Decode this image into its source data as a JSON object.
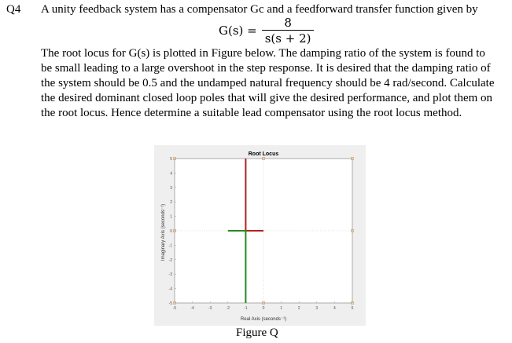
{
  "question": {
    "number": "Q4",
    "intro": "A unity feedback system has a compensator Gc and a feedforward transfer function given by",
    "equation": {
      "lhs": "G(s) =",
      "numerator": "8",
      "denominator": "s(s + 2)"
    },
    "body_lines": [
      "The root locus for G(s) is plotted in Figure below. The damping ratio of the system is found to",
      "be small leading to a large overshoot in the step response. It is desired that the damping ratio of",
      "the system should be 0.5 and the undamped natural frequency should be 4 rad/second. Calculate",
      "the desired dominant closed loop poles that will give the desired performance, and plot them on",
      "the root locus. Hence determine a suitable lead compensator using the root locus method."
    ]
  },
  "figure_caption": "Figure Q",
  "chart_data": {
    "type": "line",
    "title": "Root Locus",
    "xlabel": "Real Axis (seconds⁻¹)",
    "ylabel": "Imaginary Axis (seconds⁻¹)",
    "xlim": [
      -5,
      5
    ],
    "ylim": [
      -5,
      5
    ],
    "xticks": [
      "-5",
      "-4",
      "-3",
      "-2",
      "-1",
      "0",
      "1",
      "2",
      "3",
      "4",
      "5"
    ],
    "yticks": [
      "-5",
      "-4",
      "-3",
      "-2",
      "-1",
      "0",
      "1",
      "2",
      "3",
      "4",
      "5"
    ],
    "grid": false,
    "series": [
      {
        "color": "#b22222",
        "points": [
          [
            0,
            0
          ],
          [
            -1,
            0
          ],
          [
            -1,
            5
          ]
        ]
      },
      {
        "color": "#228b22",
        "points": [
          [
            -2,
            0
          ],
          [
            -1,
            0
          ],
          [
            -1,
            -5
          ]
        ]
      }
    ],
    "markers": [
      [
        -5,
        5
      ],
      [
        0,
        5
      ],
      [
        5,
        5
      ],
      [
        -5,
        0
      ],
      [
        5,
        0
      ],
      [
        -5,
        -5
      ],
      [
        0,
        -5
      ],
      [
        5,
        -5
      ]
    ],
    "marker_color": "#d4a060"
  }
}
